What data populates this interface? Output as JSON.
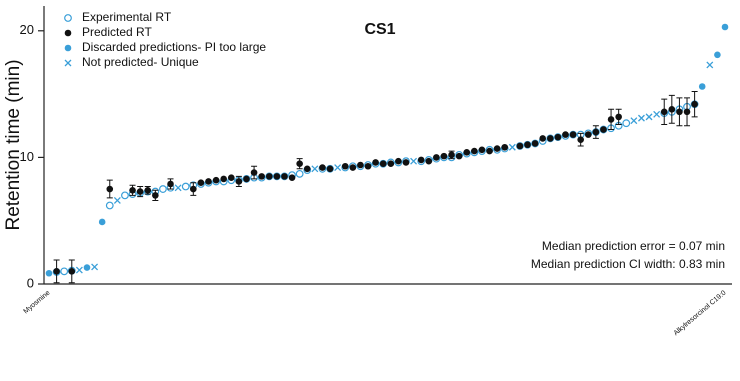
{
  "chart_data": {
    "type": "scatter",
    "title": "CS1",
    "ylabel": "Retention time (min)",
    "annotations": [
      "Median prediction error = 0.07 min",
      "Median prediction CI width: 0.83 min"
    ],
    "ylim": [
      0,
      21.8
    ],
    "yticks": [
      0,
      10,
      20
    ],
    "legend": "top-left",
    "categories": [
      "Myosmine",
      null,
      null,
      null,
      null,
      null,
      null,
      null,
      null,
      null,
      null,
      null,
      null,
      null,
      null,
      null,
      null,
      null,
      null,
      null,
      null,
      null,
      null,
      null,
      null,
      null,
      null,
      null,
      null,
      null,
      null,
      null,
      null,
      null,
      null,
      null,
      null,
      null,
      null,
      null,
      null,
      null,
      null,
      null,
      null,
      null,
      null,
      null,
      null,
      null,
      null,
      null,
      null,
      null,
      null,
      null,
      null,
      null,
      null,
      null,
      null,
      null,
      null,
      null,
      null,
      null,
      null,
      null,
      null,
      null,
      null,
      null,
      null,
      null,
      null,
      null,
      null,
      null,
      null,
      null,
      null,
      null,
      null,
      null,
      null,
      null,
      null,
      null,
      null,
      "Alkylresorcinol C19:0"
    ],
    "series": [
      {
        "name": "Experimental RT",
        "marker": "open-circle",
        "color": "#3a9fd8",
        "values": [
          null,
          0.95,
          1.0,
          1.05,
          null,
          null,
          null,
          null,
          6.2,
          null,
          7.0,
          7.1,
          7.2,
          7.3,
          7.3,
          7.5,
          7.6,
          null,
          7.7,
          7.8,
          7.9,
          8.0,
          8.1,
          8.1,
          8.2,
          8.2,
          8.3,
          8.4,
          8.4,
          8.5,
          8.5,
          8.5,
          8.6,
          8.7,
          9.0,
          null,
          9.1,
          9.1,
          null,
          9.2,
          9.3,
          9.3,
          9.4,
          9.5,
          9.5,
          9.6,
          9.6,
          9.7,
          null,
          9.7,
          9.8,
          9.9,
          10.0,
          10.0,
          10.2,
          10.3,
          10.4,
          10.5,
          10.6,
          10.6,
          10.7,
          null,
          10.9,
          11.0,
          11.1,
          11.3,
          11.5,
          11.6,
          11.7,
          11.8,
          11.8,
          11.9,
          12.0,
          12.2,
          12.3,
          12.5,
          12.7,
          null,
          null,
          null,
          null,
          13.5,
          13.6,
          13.8,
          14.0,
          14.2,
          null,
          null,
          null,
          null
        ]
      },
      {
        "name": "Predicted RT",
        "marker": "filled-circle",
        "color": "#111111",
        "values": [
          null,
          1.0,
          null,
          1.0,
          null,
          null,
          null,
          null,
          7.5,
          null,
          null,
          7.4,
          7.3,
          7.4,
          7.0,
          null,
          7.9,
          null,
          null,
          7.5,
          8.0,
          8.1,
          8.2,
          8.3,
          8.4,
          8.1,
          8.3,
          8.8,
          8.5,
          8.5,
          8.5,
          8.5,
          8.4,
          9.5,
          9.1,
          null,
          9.2,
          9.1,
          null,
          9.3,
          9.2,
          9.4,
          9.3,
          9.6,
          9.5,
          9.5,
          9.7,
          9.6,
          null,
          9.8,
          9.7,
          10.0,
          10.1,
          10.2,
          10.1,
          10.4,
          10.5,
          10.6,
          10.5,
          10.7,
          10.8,
          null,
          10.9,
          11.0,
          11.1,
          11.5,
          11.5,
          11.6,
          11.8,
          11.8,
          11.4,
          11.8,
          12.0,
          12.2,
          13.0,
          13.2,
          null,
          null,
          null,
          null,
          null,
          13.6,
          13.8,
          13.6,
          13.6,
          14.2,
          null,
          null,
          null,
          null
        ],
        "errors": [
          null,
          0.9,
          null,
          0.9,
          null,
          null,
          null,
          null,
          0.7,
          null,
          null,
          0.4,
          0.4,
          0.3,
          0.4,
          null,
          0.4,
          null,
          null,
          0.5,
          null,
          null,
          null,
          null,
          null,
          0.4,
          null,
          0.5,
          null,
          null,
          null,
          null,
          null,
          0.4,
          null,
          null,
          null,
          null,
          null,
          null,
          null,
          null,
          null,
          null,
          null,
          null,
          null,
          null,
          null,
          null,
          null,
          null,
          null,
          0.3,
          null,
          null,
          null,
          null,
          null,
          null,
          null,
          null,
          null,
          null,
          null,
          null,
          null,
          null,
          null,
          null,
          0.5,
          null,
          0.5,
          null,
          0.8,
          0.6,
          null,
          null,
          null,
          null,
          null,
          1.0,
          1.1,
          1.1,
          1.1,
          1.0,
          null,
          null,
          null,
          null
        ]
      },
      {
        "name": "Discarded predictions- PI too large",
        "marker": "filled-circle",
        "color": "#3a9fd8",
        "values": [
          0.85,
          null,
          null,
          null,
          null,
          1.3,
          null,
          4.9,
          null,
          null,
          null,
          null,
          null,
          null,
          null,
          null,
          null,
          null,
          null,
          null,
          null,
          null,
          null,
          null,
          null,
          null,
          null,
          null,
          null,
          null,
          null,
          null,
          null,
          null,
          null,
          null,
          null,
          null,
          null,
          null,
          null,
          null,
          null,
          null,
          null,
          null,
          null,
          null,
          null,
          null,
          null,
          null,
          null,
          null,
          null,
          null,
          null,
          null,
          null,
          null,
          null,
          null,
          null,
          null,
          null,
          null,
          null,
          null,
          null,
          null,
          null,
          null,
          null,
          null,
          null,
          null,
          null,
          null,
          null,
          null,
          null,
          null,
          null,
          null,
          null,
          null,
          15.6,
          null,
          18.1,
          20.3
        ]
      },
      {
        "name": "Not predicted- Unique",
        "marker": "x",
        "color": "#3a9fd8",
        "values": [
          null,
          null,
          null,
          null,
          1.1,
          null,
          1.35,
          null,
          null,
          6.6,
          null,
          null,
          null,
          null,
          null,
          null,
          null,
          7.6,
          null,
          null,
          null,
          null,
          null,
          null,
          null,
          null,
          null,
          null,
          null,
          null,
          null,
          null,
          null,
          null,
          null,
          9.1,
          null,
          null,
          9.2,
          null,
          null,
          null,
          null,
          null,
          null,
          null,
          null,
          null,
          9.7,
          null,
          null,
          null,
          null,
          null,
          null,
          null,
          null,
          null,
          null,
          null,
          null,
          10.8,
          null,
          null,
          null,
          null,
          null,
          null,
          null,
          null,
          null,
          null,
          null,
          null,
          null,
          null,
          null,
          12.9,
          13.1,
          13.2,
          13.4,
          null,
          null,
          null,
          null,
          null,
          null,
          17.3,
          null,
          null
        ]
      }
    ]
  }
}
